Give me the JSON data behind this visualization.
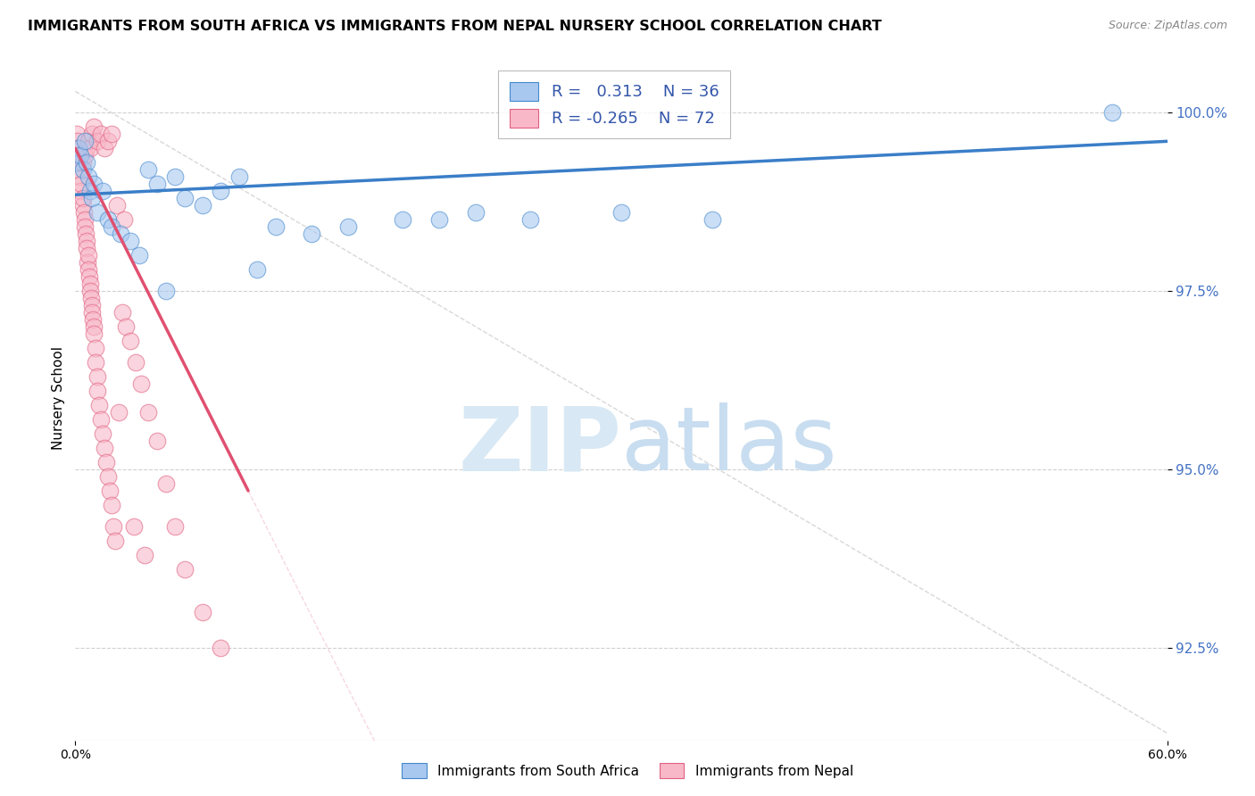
{
  "title": "IMMIGRANTS FROM SOUTH AFRICA VS IMMIGRANTS FROM NEPAL NURSERY SCHOOL CORRELATION CHART",
  "source": "Source: ZipAtlas.com",
  "ylabel_label": "Nursery School",
  "ylabel_ticks": [
    92.5,
    95.0,
    97.5,
    100.0
  ],
  "xmin": 0.0,
  "xmax": 60.0,
  "ymin": 91.2,
  "ymax": 100.8,
  "blue_R": 0.313,
  "blue_N": 36,
  "pink_R": -0.265,
  "pink_N": 72,
  "color_blue_fill": "#a8c8f0",
  "color_blue_edge": "#4488cc",
  "color_pink_fill": "#f8b8c8",
  "color_pink_edge": "#e06080",
  "color_blue_line": "#3a7ec8",
  "color_pink_line": "#e05070",
  "color_diag": "#cccccc",
  "watermark_zip_color": "#d0e4f7",
  "watermark_atlas_color": "#c0d8f0",
  "blue_scatter_x": [
    0.1,
    0.2,
    0.3,
    0.4,
    0.5,
    0.6,
    0.7,
    0.8,
    0.9,
    1.0,
    1.2,
    1.5,
    1.8,
    2.0,
    2.5,
    3.0,
    3.5,
    4.0,
    4.5,
    5.0,
    5.5,
    6.0,
    7.0,
    8.0,
    9.0,
    10.0,
    11.0,
    13.0,
    15.0,
    18.0,
    20.0,
    22.0,
    25.0,
    30.0,
    35.0,
    57.0
  ],
  "blue_scatter_y": [
    99.3,
    99.5,
    99.4,
    99.2,
    99.6,
    99.3,
    99.1,
    98.9,
    98.8,
    99.0,
    98.6,
    98.9,
    98.5,
    98.4,
    98.3,
    98.2,
    98.0,
    99.2,
    99.0,
    97.5,
    99.1,
    98.8,
    98.7,
    98.9,
    99.1,
    97.8,
    98.4,
    98.3,
    98.4,
    98.5,
    98.5,
    98.6,
    98.5,
    98.6,
    98.5,
    100.0
  ],
  "pink_scatter_x": [
    0.1,
    0.1,
    0.15,
    0.2,
    0.2,
    0.25,
    0.3,
    0.3,
    0.35,
    0.4,
    0.4,
    0.45,
    0.5,
    0.5,
    0.55,
    0.6,
    0.6,
    0.65,
    0.7,
    0.7,
    0.75,
    0.8,
    0.8,
    0.85,
    0.9,
    0.9,
    0.95,
    1.0,
    1.0,
    1.1,
    1.1,
    1.2,
    1.2,
    1.3,
    1.4,
    1.5,
    1.6,
    1.7,
    1.8,
    1.9,
    2.0,
    2.1,
    2.2,
    2.4,
    2.6,
    2.8,
    3.0,
    3.3,
    3.6,
    4.0,
    4.5,
    5.0,
    5.5,
    6.0,
    7.0,
    8.0,
    0.4,
    0.5,
    0.6,
    0.7,
    0.8,
    0.9,
    1.0,
    1.2,
    1.4,
    1.6,
    1.8,
    2.0,
    2.3,
    2.7,
    3.2,
    3.8
  ],
  "pink_scatter_y": [
    99.7,
    99.5,
    99.6,
    99.4,
    99.2,
    99.3,
    99.1,
    98.9,
    99.0,
    98.7,
    98.8,
    98.6,
    98.5,
    98.4,
    98.3,
    98.2,
    98.1,
    97.9,
    98.0,
    97.8,
    97.7,
    97.6,
    97.5,
    97.4,
    97.3,
    97.2,
    97.1,
    97.0,
    96.9,
    96.7,
    96.5,
    96.3,
    96.1,
    95.9,
    95.7,
    95.5,
    95.3,
    95.1,
    94.9,
    94.7,
    94.5,
    94.2,
    94.0,
    95.8,
    97.2,
    97.0,
    96.8,
    96.5,
    96.2,
    95.8,
    95.4,
    94.8,
    94.2,
    93.6,
    93.0,
    92.5,
    99.3,
    99.4,
    99.5,
    99.6,
    99.5,
    99.7,
    99.8,
    99.6,
    99.7,
    99.5,
    99.6,
    99.7,
    98.7,
    98.5,
    94.2,
    93.8
  ],
  "blue_trend_x0": 0.0,
  "blue_trend_y0": 98.85,
  "blue_trend_x1": 60.0,
  "blue_trend_y1": 99.6,
  "pink_trend_x0": 0.0,
  "pink_trend_y0": 99.5,
  "pink_trend_x1": 9.5,
  "pink_trend_y1": 94.7
}
